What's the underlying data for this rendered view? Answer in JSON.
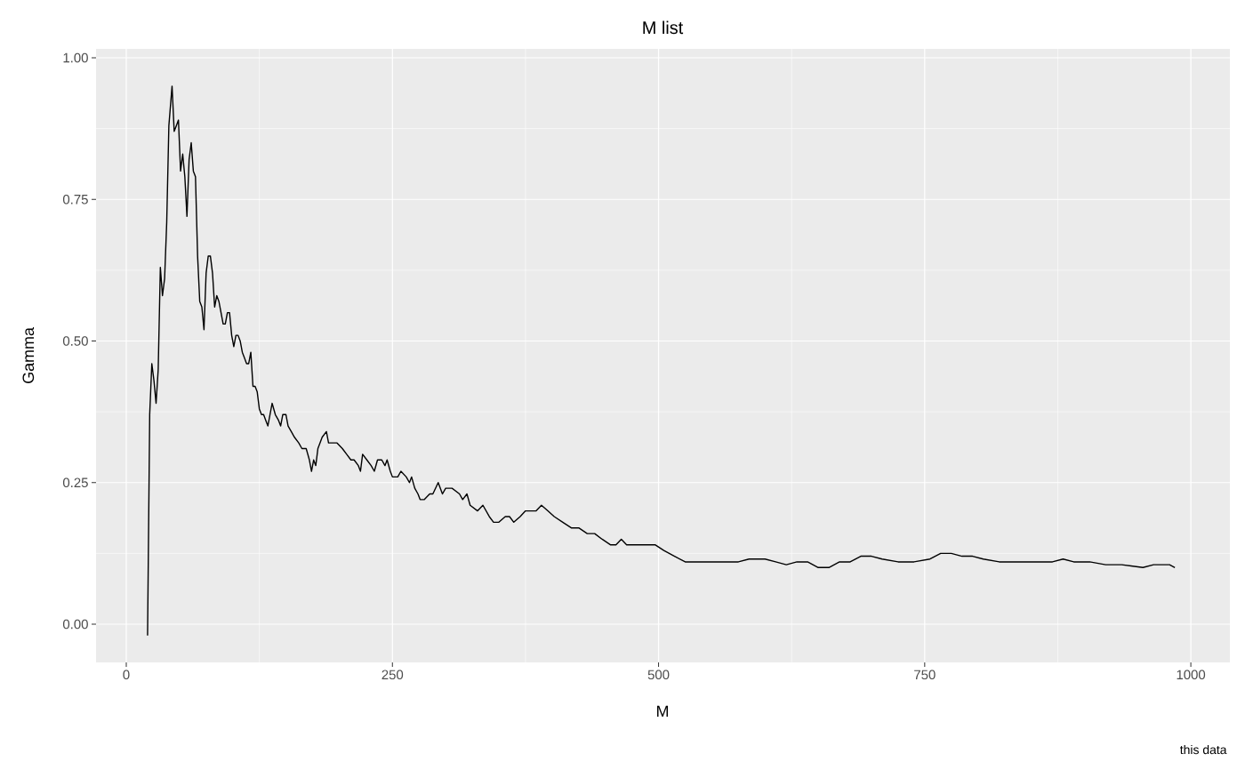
{
  "chart_data": {
    "type": "line",
    "title": "M list",
    "xlabel": "M",
    "ylabel": "Gamma",
    "annotations": [
      "this data"
    ],
    "grid": true,
    "xlim": [
      -28.4,
      1036.7
    ],
    "ylim": [
      -0.0675,
      1.0157
    ],
    "xticks": [
      0,
      250,
      500,
      750,
      1000
    ],
    "yticks": [
      {
        "value": 0,
        "label": "0.00"
      },
      {
        "value": 0.25,
        "label": "0.25"
      },
      {
        "value": 0.5,
        "label": "0.50"
      },
      {
        "value": 0.75,
        "label": "0.75"
      },
      {
        "value": 1,
        "label": "1.00"
      }
    ],
    "x": [
      20,
      22,
      24,
      26,
      28,
      30,
      32,
      34,
      36,
      38,
      40,
      43,
      45,
      47,
      49,
      51,
      53,
      55,
      57,
      59,
      61,
      63,
      65,
      67,
      69,
      71,
      73,
      75,
      77,
      79,
      81,
      83,
      85,
      87,
      89,
      91,
      93,
      95,
      97,
      99,
      101,
      103,
      105,
      107,
      109,
      111,
      113,
      115,
      117,
      119,
      121,
      123,
      125,
      127,
      129,
      131,
      133,
      135,
      137,
      140,
      143,
      145,
      147,
      150,
      152,
      155,
      158,
      162,
      165,
      169,
      172,
      174,
      176,
      178,
      180,
      184,
      188,
      190,
      194,
      198,
      203,
      207,
      211,
      214,
      218,
      220,
      222,
      226,
      230,
      233,
      236,
      240,
      243,
      245,
      248,
      250,
      255,
      258,
      263,
      266,
      268,
      271,
      274,
      276,
      280,
      285,
      288,
      293,
      297,
      300,
      306,
      313,
      316,
      320,
      323,
      330,
      335,
      341,
      345,
      350,
      356,
      360,
      364,
      370,
      375,
      381,
      385,
      390,
      396,
      402,
      410,
      418,
      425,
      433,
      440,
      447,
      455,
      460,
      465,
      470,
      480,
      490,
      497,
      505,
      515,
      525,
      535,
      545,
      555,
      565,
      575,
      585,
      600,
      610,
      620,
      630,
      640,
      650,
      660,
      670,
      680,
      690,
      700,
      710,
      725,
      740,
      755,
      765,
      775,
      785,
      795,
      805,
      820,
      840,
      855,
      870,
      880,
      890,
      905,
      920,
      935,
      955,
      965,
      980,
      985
    ],
    "series": [
      {
        "color": "#000000",
        "line_style": "solid",
        "values": [
          -0.02,
          0.37,
          0.46,
          0.43,
          0.39,
          0.45,
          0.63,
          0.58,
          0.61,
          0.71,
          0.88,
          0.95,
          0.87,
          0.88,
          0.89,
          0.8,
          0.83,
          0.79,
          0.72,
          0.82,
          0.85,
          0.8,
          0.79,
          0.65,
          0.57,
          0.56,
          0.52,
          0.62,
          0.65,
          0.65,
          0.62,
          0.56,
          0.58,
          0.57,
          0.55,
          0.53,
          0.53,
          0.55,
          0.55,
          0.51,
          0.49,
          0.51,
          0.51,
          0.5,
          0.48,
          0.47,
          0.46,
          0.46,
          0.48,
          0.42,
          0.42,
          0.41,
          0.38,
          0.37,
          0.37,
          0.36,
          0.35,
          0.37,
          0.39,
          0.37,
          0.36,
          0.35,
          0.37,
          0.37,
          0.35,
          0.34,
          0.33,
          0.32,
          0.31,
          0.31,
          0.29,
          0.27,
          0.29,
          0.28,
          0.31,
          0.33,
          0.34,
          0.32,
          0.32,
          0.32,
          0.31,
          0.3,
          0.29,
          0.29,
          0.28,
          0.27,
          0.3,
          0.29,
          0.28,
          0.27,
          0.29,
          0.29,
          0.28,
          0.29,
          0.27,
          0.26,
          0.26,
          0.27,
          0.26,
          0.25,
          0.26,
          0.24,
          0.23,
          0.22,
          0.22,
          0.23,
          0.23,
          0.25,
          0.23,
          0.24,
          0.24,
          0.23,
          0.22,
          0.23,
          0.21,
          0.2,
          0.21,
          0.19,
          0.18,
          0.18,
          0.19,
          0.19,
          0.18,
          0.19,
          0.2,
          0.2,
          0.2,
          0.21,
          0.2,
          0.19,
          0.18,
          0.17,
          0.17,
          0.16,
          0.16,
          0.15,
          0.14,
          0.14,
          0.15,
          0.14,
          0.14,
          0.14,
          0.14,
          0.13,
          0.12,
          0.11,
          0.11,
          0.11,
          0.11,
          0.11,
          0.11,
          0.115,
          0.115,
          0.11,
          0.105,
          0.11,
          0.11,
          0.1,
          0.1,
          0.11,
          0.11,
          0.12,
          0.12,
          0.115,
          0.11,
          0.11,
          0.115,
          0.125,
          0.125,
          0.12,
          0.12,
          0.115,
          0.11,
          0.11,
          0.11,
          0.11,
          0.115,
          0.11,
          0.11,
          0.105,
          0.105,
          0.1,
          0.105,
          0.105,
          0.1
        ]
      }
    ]
  }
}
